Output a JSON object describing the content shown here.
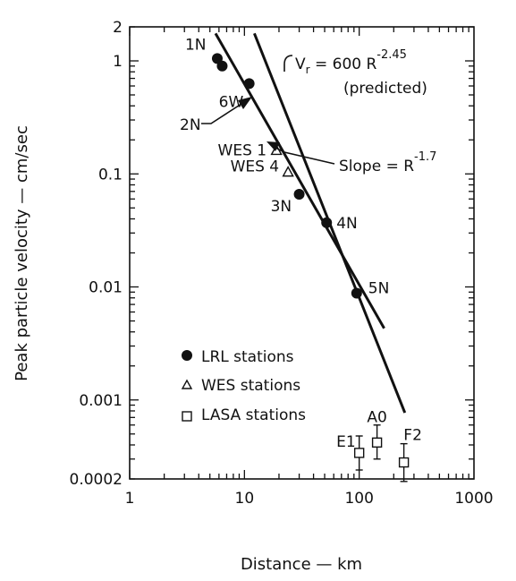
{
  "chart_data": {
    "type": "scatter",
    "xlabel": "Distance — km",
    "ylabel": "Peak particle velocity — cm/sec",
    "xscale": "log",
    "yscale": "log",
    "xlim": [
      1,
      1000
    ],
    "ylim": [
      0.0002,
      2
    ],
    "x_ticks": [
      {
        "value": 1,
        "label": "1"
      },
      {
        "value": 10,
        "label": "10"
      },
      {
        "value": 100,
        "label": "100"
      },
      {
        "value": 1000,
        "label": "1000"
      }
    ],
    "y_ticks": [
      {
        "value": 2,
        "label": "2"
      },
      {
        "value": 1,
        "label": "1"
      },
      {
        "value": 0.1,
        "label": "0.1"
      },
      {
        "value": 0.01,
        "label": "0.01"
      },
      {
        "value": 0.001,
        "label": "0.001"
      },
      {
        "value": 0.0002,
        "label": "0.0002"
      }
    ],
    "grid": false,
    "legend_position": "lower-left",
    "series": [
      {
        "name": "LRL stations",
        "marker": "filled-circle",
        "points": [
          {
            "x": 5.8,
            "y": 1.05,
            "label": "1N"
          },
          {
            "x": 6.4,
            "y": 0.9,
            "label": ""
          },
          {
            "x": 11,
            "y": 0.63,
            "label": "6W"
          },
          {
            "x": 30,
            "y": 0.066,
            "label": "3N"
          },
          {
            "x": 52,
            "y": 0.037,
            "label": "4N"
          },
          {
            "x": 95,
            "y": 0.0088,
            "label": "5N"
          }
        ]
      },
      {
        "name": "WES stations",
        "marker": "open-triangle",
        "points": [
          {
            "x": 19,
            "y": 0.16,
            "label": "WES 1"
          },
          {
            "x": 24,
            "y": 0.103,
            "label": "WES 4"
          }
        ]
      },
      {
        "name": "LASA stations",
        "marker": "open-square",
        "points": [
          {
            "x": 100,
            "y": 0.00034,
            "yerr": [
              0.00024,
              0.00048
            ],
            "label": "E1"
          },
          {
            "x": 143,
            "y": 0.00042,
            "yerr": [
              0.0003,
              0.0006
            ],
            "label": "A0"
          },
          {
            "x": 245,
            "y": 0.00028,
            "yerr": [
              0.00019,
              0.00041
            ],
            "label": "F2"
          }
        ]
      }
    ],
    "lines": [
      {
        "id": "predicted",
        "x": [
          12.2,
          250
        ],
        "y": [
          1.75,
          0.00077
        ]
      },
      {
        "id": "slope",
        "x": [
          5.6,
          165
        ],
        "y": [
          1.75,
          0.0043
        ]
      }
    ],
    "annotations": [
      {
        "id": "predicted-eq",
        "text": "V",
        "subscript": "r",
        "rest": " = 600 R",
        "exponent": "-2.45",
        "line2": "(predicted)"
      },
      {
        "id": "slope-eq",
        "text": "Slope = R",
        "exponent": "-1.7"
      },
      {
        "id": "label-2n",
        "text": "2N"
      }
    ]
  }
}
